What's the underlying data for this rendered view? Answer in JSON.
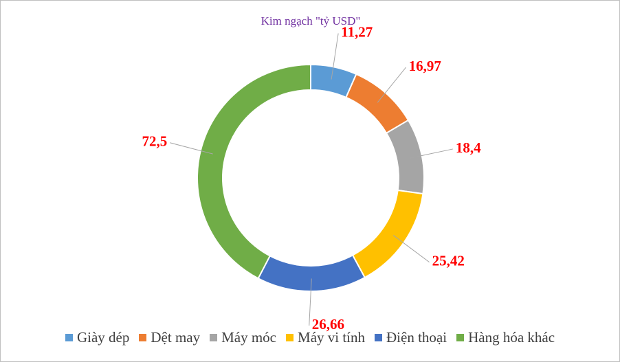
{
  "chart_data": {
    "type": "donut",
    "title": "Kim ngạch \"tỷ USD\"",
    "categories": [
      "Giày dép",
      "Dệt may",
      "Máy móc",
      "Máy vi tính",
      "Điện thoại",
      "Hàng hóa khác"
    ],
    "values": [
      11.27,
      16.97,
      18.4,
      25.42,
      26.66,
      72.5
    ],
    "value_labels": [
      "11,27",
      "16,97",
      "18,4",
      "25,42",
      "26,66",
      "72,5"
    ],
    "colors": [
      "#5b9bd5",
      "#ed7d31",
      "#a5a5a5",
      "#ffc000",
      "#4472c4",
      "#70ad47"
    ],
    "legend": "bottom"
  }
}
